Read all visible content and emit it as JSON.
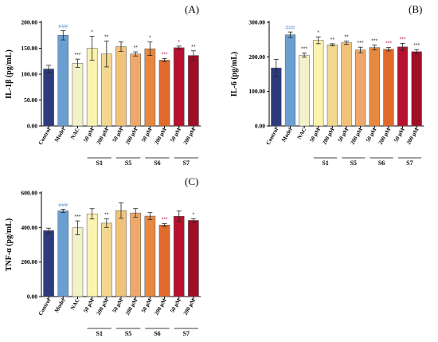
{
  "colors": [
    "#2e3a7c",
    "#6b9fd1",
    "#f4f0c9",
    "#fbf3b0",
    "#f2d88f",
    "#f0c27a",
    "#efa86a",
    "#e8883f",
    "#e06a2c",
    "#b8112f",
    "#a00f28"
  ],
  "chart_data": [
    {
      "type": "bar",
      "panel": "(A)",
      "ylabel": "IL-1β (pg/mL)",
      "ylim": [
        0,
        200
      ],
      "yticks": [
        "0.00",
        "50.00",
        "100.00",
        "150.00",
        "200.00"
      ],
      "categories": [
        "Control",
        "Model",
        "NAC",
        "50 μM",
        "200 μM",
        "50 μM",
        "200 μM",
        "50 μM",
        "200 μM",
        "50 μM",
        "200 μM"
      ],
      "values": [
        110,
        175,
        121,
        150,
        139,
        153,
        139,
        149,
        127,
        151,
        136
      ],
      "errors": [
        7,
        9,
        8,
        23,
        25,
        9,
        4,
        13,
        3,
        3,
        9
      ],
      "significance": [
        "",
        "###",
        "***",
        "*",
        "**",
        "",
        "**",
        "*",
        "***",
        "*",
        "**"
      ],
      "groups": [
        "S1",
        "S5",
        "S6",
        "S7"
      ]
    },
    {
      "type": "bar",
      "panel": "(B)",
      "ylabel": "IL-6 (pg/mL)",
      "ylim": [
        0,
        300
      ],
      "yticks": [
        "0.00",
        "100.00",
        "200.00",
        "300.00"
      ],
      "categories": [
        "Control",
        "Model",
        "NAC",
        "50 μM",
        "200 μM",
        "50 μM",
        "200 μM",
        "50 μM",
        "200 μM",
        "50 μM",
        "200 μM"
      ],
      "values": [
        168,
        264,
        205,
        248,
        235,
        241,
        220,
        227,
        222,
        229,
        215
      ],
      "errors": [
        25,
        8,
        6,
        10,
        3,
        5,
        8,
        7,
        5,
        10,
        6
      ],
      "significance": [
        "",
        "###",
        "***",
        "*",
        "**",
        "**",
        "***",
        "***",
        "***",
        "***",
        "***"
      ],
      "groups": [
        "S1",
        "S5",
        "S6",
        "S7"
      ]
    },
    {
      "type": "bar",
      "panel": "(C)",
      "ylabel": "TNF-α (pg/mL)",
      "ylim": [
        0,
        600
      ],
      "yticks": [
        "0.00",
        "200.00",
        "400.00",
        "600.00"
      ],
      "categories": [
        "Control",
        "Model",
        "NAC",
        "50 μM",
        "200 μM",
        "50 μM",
        "200 μM",
        "50 μM",
        "200 μM",
        "50 μM",
        "200 μM"
      ],
      "values": [
        382,
        496,
        398,
        479,
        425,
        498,
        484,
        466,
        414,
        465,
        441
      ],
      "errors": [
        14,
        10,
        40,
        30,
        25,
        45,
        25,
        20,
        8,
        30,
        10
      ],
      "significance": [
        "",
        "###",
        "***",
        "",
        "**",
        "",
        "",
        "",
        "***",
        "",
        "*"
      ],
      "groups": [
        "S1",
        "S5",
        "S6",
        "S7"
      ]
    }
  ]
}
